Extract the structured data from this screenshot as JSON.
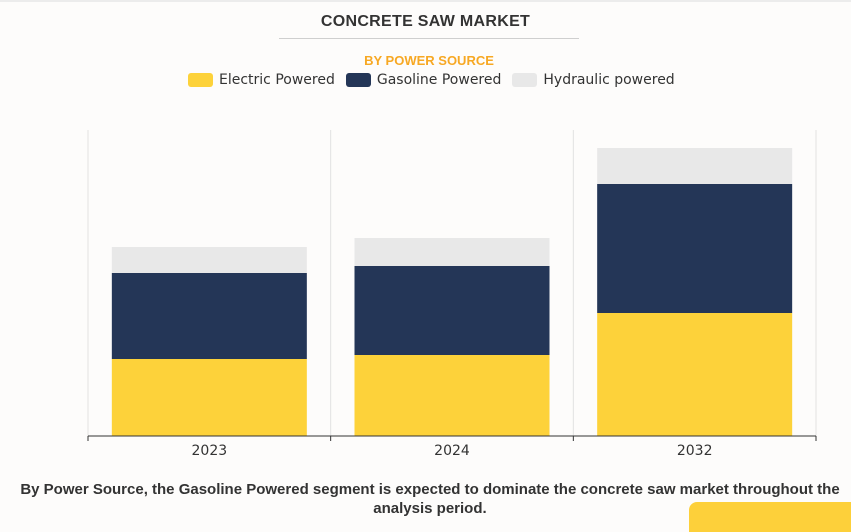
{
  "chart_data": {
    "type": "bar",
    "stacked": true,
    "title": "CONCRETE SAW MARKET",
    "subtitle": "BY POWER SOURCE",
    "categories": [
      "2023",
      "2024",
      "2032"
    ],
    "series": [
      {
        "name": "Electric Powered",
        "color": "#fdd23a",
        "values": [
          77,
          81,
          123
        ]
      },
      {
        "name": "Gasoline Powered",
        "color": "#243657",
        "values": [
          86,
          89,
          129
        ]
      },
      {
        "name": "Hydraulic powered",
        "color": "#e8e8e8",
        "values": [
          26,
          28,
          36
        ]
      }
    ],
    "xlabel": "",
    "ylabel": "",
    "ylim": [
      0,
      306
    ],
    "grid": "vertical separators",
    "legend_position": "top-center"
  },
  "caption": "By Power Source, the Gasoline Powered segment is expected to dominate the concrete saw market throughout the analysis period."
}
